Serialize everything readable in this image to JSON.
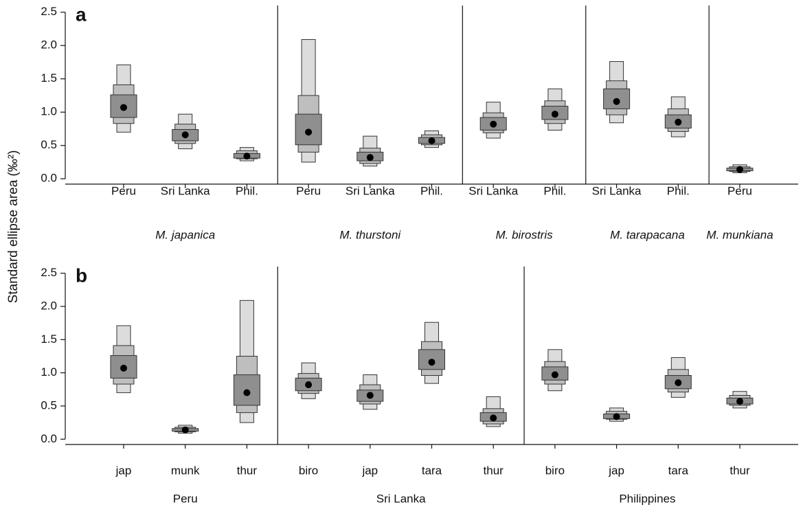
{
  "chart_data": [
    {
      "type": "interval",
      "label": "a",
      "group_italic": true,
      "ylim": [
        -0.08,
        2.58
      ],
      "yticks": [
        {
          "value": 0,
          "label": "0.0"
        },
        {
          "value": 0.5,
          "label": "0.5"
        },
        {
          "value": 1,
          "label": "1.0"
        },
        {
          "value": 1.5,
          "label": "1.5"
        },
        {
          "value": 2,
          "label": "2.0"
        },
        {
          "value": 2.5,
          "label": "2.5"
        }
      ],
      "groups": [
        {
          "name": "M. japanica",
          "categories": [
            "Peru",
            "Sri Lanka",
            "Phil."
          ],
          "modes": [
            1.07,
            0.66,
            0.34
          ],
          "intervals": [
            [
              [
                0.7,
                1.71
              ],
              [
                0.83,
                1.41
              ],
              [
                0.92,
                1.26
              ]
            ],
            [
              [
                0.45,
                0.97
              ],
              [
                0.53,
                0.82
              ],
              [
                0.57,
                0.74
              ]
            ],
            [
              [
                0.27,
                0.47
              ],
              [
                0.3,
                0.42
              ],
              [
                0.31,
                0.38
              ]
            ]
          ]
        },
        {
          "name": "M. thurstoni",
          "categories": [
            "Peru",
            "Sri Lanka",
            "Phil."
          ],
          "modes": [
            0.7,
            0.32,
            0.57
          ],
          "intervals": [
            [
              [
                0.25,
                2.09
              ],
              [
                0.4,
                1.25
              ],
              [
                0.51,
                0.97
              ]
            ],
            [
              [
                0.19,
                0.64
              ],
              [
                0.23,
                0.46
              ],
              [
                0.27,
                0.4
              ]
            ],
            [
              [
                0.47,
                0.72
              ],
              [
                0.51,
                0.66
              ],
              [
                0.53,
                0.62
              ]
            ]
          ]
        },
        {
          "name": "M. birostris",
          "categories": [
            "Sri Lanka",
            "Phil."
          ],
          "modes": [
            0.82,
            0.97
          ],
          "intervals": [
            [
              [
                0.61,
                1.15
              ],
              [
                0.69,
                0.99
              ],
              [
                0.73,
                0.92
              ]
            ],
            [
              [
                0.73,
                1.35
              ],
              [
                0.83,
                1.17
              ],
              [
                0.89,
                1.09
              ]
            ]
          ]
        },
        {
          "name": "M. tarapacana",
          "categories": [
            "Sri Lanka",
            "Phil."
          ],
          "modes": [
            1.16,
            0.85
          ],
          "intervals": [
            [
              [
                0.84,
                1.76
              ],
              [
                0.96,
                1.47
              ],
              [
                1.05,
                1.35
              ]
            ],
            [
              [
                0.63,
                1.23
              ],
              [
                0.71,
                1.05
              ],
              [
                0.76,
                0.96
              ]
            ]
          ]
        },
        {
          "name": "M. munkiana",
          "categories": [
            "Peru"
          ],
          "modes": [
            0.14
          ],
          "intervals": [
            [
              [
                0.09,
                0.21
              ],
              [
                0.11,
                0.18
              ],
              [
                0.12,
                0.16
              ]
            ]
          ]
        }
      ]
    },
    {
      "type": "interval",
      "label": "b",
      "group_italic": false,
      "ylim": [
        -0.08,
        2.58
      ],
      "yticks": [
        {
          "value": 0,
          "label": "0.0"
        },
        {
          "value": 0.5,
          "label": "0.5"
        },
        {
          "value": 1,
          "label": "1.0"
        },
        {
          "value": 1.5,
          "label": "1.5"
        },
        {
          "value": 2,
          "label": "2.0"
        },
        {
          "value": 2.5,
          "label": "2.5"
        }
      ],
      "groups": [
        {
          "name": "Peru",
          "categories": [
            "jap",
            "munk",
            "thur"
          ],
          "modes": [
            1.07,
            0.14,
            0.7
          ],
          "intervals": [
            [
              [
                0.7,
                1.71
              ],
              [
                0.83,
                1.41
              ],
              [
                0.92,
                1.26
              ]
            ],
            [
              [
                0.09,
                0.21
              ],
              [
                0.11,
                0.18
              ],
              [
                0.12,
                0.16
              ]
            ],
            [
              [
                0.25,
                2.09
              ],
              [
                0.4,
                1.25
              ],
              [
                0.51,
                0.97
              ]
            ]
          ]
        },
        {
          "name": "Sri Lanka",
          "categories": [
            "biro",
            "jap",
            "tara",
            "thur"
          ],
          "modes": [
            0.82,
            0.66,
            1.16,
            0.32
          ],
          "intervals": [
            [
              [
                0.61,
                1.15
              ],
              [
                0.69,
                0.99
              ],
              [
                0.73,
                0.92
              ]
            ],
            [
              [
                0.45,
                0.97
              ],
              [
                0.53,
                0.82
              ],
              [
                0.57,
                0.74
              ]
            ],
            [
              [
                0.84,
                1.76
              ],
              [
                0.96,
                1.47
              ],
              [
                1.05,
                1.35
              ]
            ],
            [
              [
                0.19,
                0.64
              ],
              [
                0.23,
                0.46
              ],
              [
                0.27,
                0.4
              ]
            ]
          ]
        },
        {
          "name": "Philippines",
          "categories": [
            "biro",
            "jap",
            "tara",
            "thur"
          ],
          "modes": [
            0.97,
            0.34,
            0.85,
            0.57
          ],
          "intervals": [
            [
              [
                0.73,
                1.35
              ],
              [
                0.83,
                1.17
              ],
              [
                0.89,
                1.09
              ]
            ],
            [
              [
                0.27,
                0.47
              ],
              [
                0.3,
                0.42
              ],
              [
                0.31,
                0.38
              ]
            ],
            [
              [
                0.63,
                1.23
              ],
              [
                0.71,
                1.05
              ],
              [
                0.76,
                0.96
              ]
            ],
            [
              [
                0.47,
                0.72
              ],
              [
                0.51,
                0.66
              ],
              [
                0.53,
                0.62
              ]
            ]
          ]
        }
      ]
    }
  ],
  "ylabel": "Standard ellipse area (‰²)"
}
